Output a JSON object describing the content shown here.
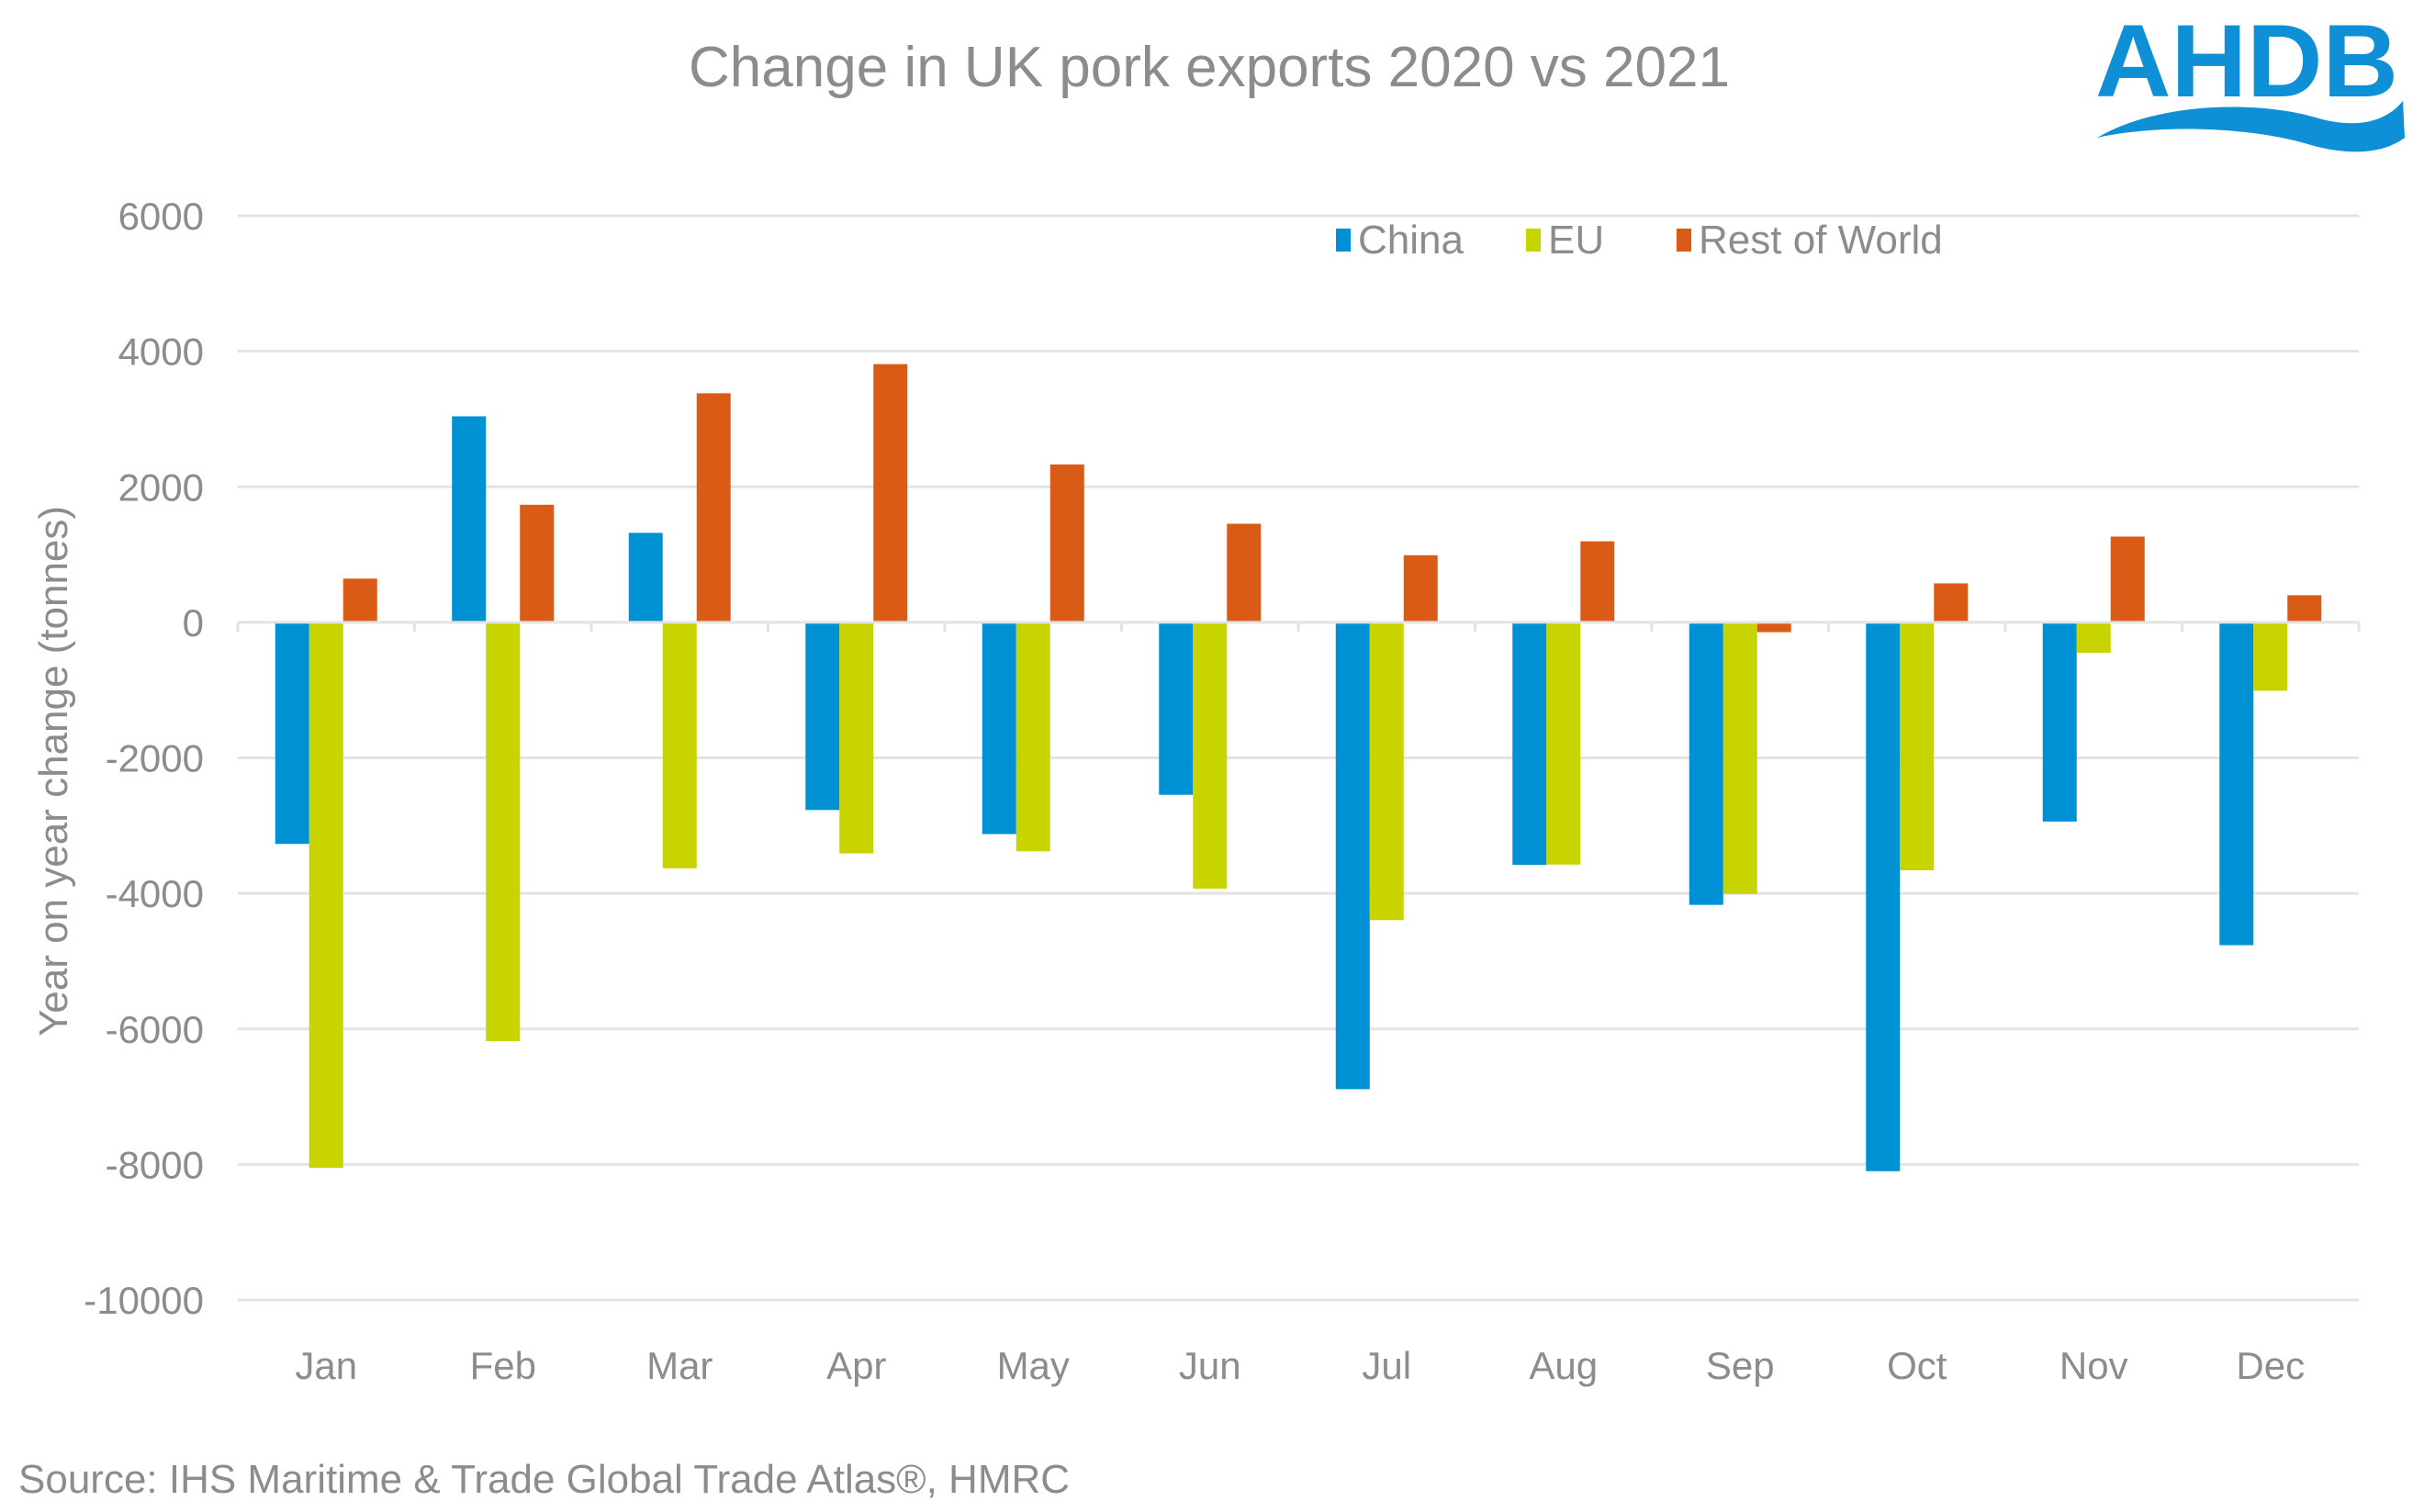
{
  "header": {
    "logo_text": "AHDB",
    "logo_color": "#0e8fd6"
  },
  "footer": {
    "source": "Source: IHS Maritime & Trade Global Trade Atlas®, HMRC"
  },
  "chart_data": {
    "type": "bar",
    "title": "Change in UK pork exports 2020 vs 2021",
    "xlabel": "",
    "ylabel": "Year on year change (tonnes)",
    "ylim": [
      -10000,
      6000
    ],
    "yticks": [
      6000,
      4000,
      2000,
      0,
      -2000,
      -4000,
      -6000,
      -8000,
      -10000
    ],
    "grid": true,
    "legend_position": "top-right",
    "categories": [
      "Jan",
      "Feb",
      "Mar",
      "Apr",
      "May",
      "Jun",
      "Jul",
      "Aug",
      "Sep",
      "Oct",
      "Nov",
      "Dec"
    ],
    "series": [
      {
        "name": "China",
        "color": "#0090d4",
        "values": [
          -3270,
          3040,
          1320,
          -2770,
          -3125,
          -2545,
          -6890,
          -3580,
          -4170,
          -8100,
          -2940,
          -4765
        ]
      },
      {
        "name": "EU",
        "color": "#c8d400",
        "values": [
          -8050,
          -6180,
          -3630,
          -3410,
          -3380,
          -3930,
          -4395,
          -3575,
          -4010,
          -3660,
          -450,
          -1010
        ]
      },
      {
        "name": "Rest of World",
        "color": "#d95b16",
        "values": [
          645,
          1735,
          3380,
          3810,
          2330,
          1455,
          990,
          1195,
          -145,
          575,
          1265,
          400
        ]
      }
    ]
  }
}
